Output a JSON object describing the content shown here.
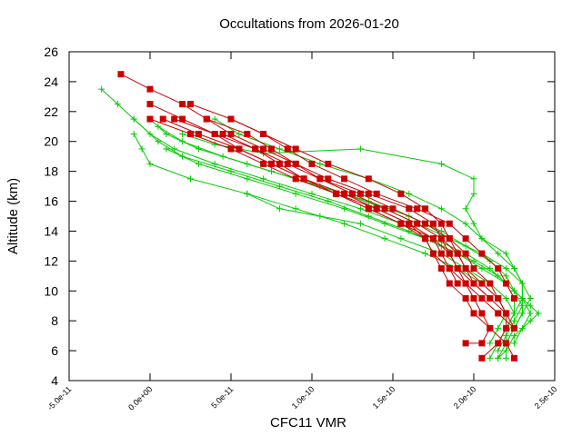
{
  "chart_data": {
    "type": "line",
    "title": "Occultations from 2026-01-20",
    "xlabel": "CFC11 VMR",
    "ylabel": "Altitude (km)",
    "xlim": [
      -5e-11,
      2.5e-10
    ],
    "ylim": [
      4,
      26
    ],
    "x_ticks": [
      "-5.0e-11",
      "0.0e+00",
      "5.0e-11",
      "1.0e-10",
      "1.5e-10",
      "2.0e-10",
      "2.5e-10"
    ],
    "y_ticks": [
      "4",
      "6",
      "8",
      "10",
      "12",
      "14",
      "16",
      "18",
      "20",
      "22",
      "24",
      "26"
    ],
    "grid": false,
    "legend": "none",
    "colors": {
      "green_series": "#00cc00",
      "red_series": "#cc0000"
    },
    "green_series": [
      {
        "points": [
          [
            -3e-11,
            23.5
          ],
          [
            -2e-11,
            22.5
          ],
          [
            -1e-11,
            21.5
          ],
          [
            5e-12,
            20.0
          ],
          [
            2e-11,
            19.0
          ],
          [
            5e-11,
            18.0
          ],
          [
            8e-11,
            17.0
          ],
          [
            1.1e-10,
            16.0
          ],
          [
            1.35e-10,
            15.0
          ],
          [
            1.6e-10,
            14.0
          ],
          [
            1.8e-10,
            13.0
          ],
          [
            2e-10,
            12.0
          ],
          [
            2.15e-10,
            11.0
          ],
          [
            2.25e-10,
            10.0
          ],
          [
            2.35e-10,
            9.0
          ],
          [
            2.4e-10,
            8.5
          ],
          [
            2.35e-10,
            8.0
          ],
          [
            2.25e-10,
            7.0
          ],
          [
            2.2e-10,
            6.0
          ],
          [
            2.15e-10,
            5.5
          ]
        ]
      },
      {
        "points": [
          [
            -1e-11,
            21.5
          ],
          [
            0.0,
            20.5
          ],
          [
            1.5e-11,
            19.5
          ],
          [
            4e-11,
            18.5
          ],
          [
            7e-11,
            17.5
          ],
          [
            1e-10,
            16.5
          ],
          [
            1.3e-10,
            15.5
          ],
          [
            1.55e-10,
            14.5
          ],
          [
            1.75e-10,
            13.5
          ],
          [
            1.95e-10,
            12.5
          ],
          [
            2.1e-10,
            11.5
          ],
          [
            2.2e-10,
            10.5
          ],
          [
            2.25e-10,
            9.5
          ],
          [
            2.25e-10,
            8.5
          ],
          [
            2.2e-10,
            7.5
          ],
          [
            2.15e-10,
            6.5
          ],
          [
            2.1e-10,
            5.5
          ]
        ]
      },
      {
        "points": [
          [
            -1e-11,
            20.5
          ],
          [
            -5e-12,
            19.5
          ],
          [
            0.0,
            18.5
          ],
          [
            2.5e-11,
            17.5
          ],
          [
            6e-11,
            16.5
          ],
          [
            9e-11,
            15.5
          ],
          [
            1.2e-10,
            14.5
          ],
          [
            1.45e-10,
            13.5
          ],
          [
            1.7e-10,
            12.5
          ],
          [
            1.9e-10,
            11.5
          ],
          [
            2.05e-10,
            10.5
          ],
          [
            2.15e-10,
            9.5
          ],
          [
            2.2e-10,
            8.5
          ],
          [
            2.15e-10,
            7.5
          ],
          [
            2.1e-10,
            6.5
          ]
        ]
      },
      {
        "points": [
          [
            0.0,
            21.5
          ],
          [
            1e-11,
            20.5
          ],
          [
            3e-11,
            19.5
          ],
          [
            6e-11,
            18.5
          ],
          [
            9e-11,
            17.5
          ],
          [
            1.2e-10,
            16.5
          ],
          [
            1.45e-10,
            15.5
          ],
          [
            1.65e-10,
            14.5
          ],
          [
            1.85e-10,
            13.5
          ],
          [
            2.05e-10,
            12.5
          ],
          [
            2.2e-10,
            11.5
          ],
          [
            2.3e-10,
            10.5
          ],
          [
            2.35e-10,
            9.5
          ],
          [
            2.3e-10,
            8.5
          ],
          [
            2.25e-10,
            7.5
          ],
          [
            2.2e-10,
            6.5
          ],
          [
            2.15e-10,
            5.5
          ]
        ]
      },
      {
        "points": [
          [
            5e-12,
            21.0
          ],
          [
            2e-11,
            20.0
          ],
          [
            4.5e-11,
            19.0
          ],
          [
            7.5e-11,
            18.0
          ],
          [
            1.05e-10,
            17.0
          ],
          [
            1.35e-10,
            16.0
          ],
          [
            1.6e-10,
            15.0
          ],
          [
            1.8e-10,
            14.0
          ],
          [
            1.95e-10,
            13.0
          ],
          [
            2.1e-10,
            12.0
          ],
          [
            2.2e-10,
            11.0
          ],
          [
            2.25e-10,
            10.0
          ],
          [
            2.3e-10,
            9.0
          ],
          [
            2.25e-10,
            8.0
          ],
          [
            2.2e-10,
            7.0
          ],
          [
            2.15e-10,
            6.0
          ]
        ]
      },
      {
        "points": [
          [
            2e-11,
            20.5
          ],
          [
            4e-11,
            19.8
          ],
          [
            7e-11,
            19.2
          ],
          [
            1.3e-10,
            19.5
          ],
          [
            1.8e-10,
            18.5
          ],
          [
            2e-10,
            17.5
          ],
          [
            2e-10,
            16.5
          ],
          [
            1.95e-10,
            15.5
          ],
          [
            2e-10,
            14.5
          ],
          [
            2.05e-10,
            13.5
          ],
          [
            2.2e-10,
            12.5
          ],
          [
            2.25e-10,
            11.5
          ],
          [
            2.3e-10,
            10.5
          ],
          [
            2.3e-10,
            9.5
          ],
          [
            2.25e-10,
            8.5
          ],
          [
            2.2e-10,
            7.5
          ],
          [
            2.2e-10,
            6.5
          ],
          [
            2.2e-10,
            5.5
          ]
        ]
      },
      {
        "points": [
          [
            4e-11,
            21.5
          ],
          [
            5.5e-11,
            20.5
          ],
          [
            8e-11,
            19.5
          ],
          [
            1.05e-10,
            18.5
          ],
          [
            1.35e-10,
            17.5
          ],
          [
            1.6e-10,
            16.5
          ],
          [
            1.8e-10,
            15.5
          ],
          [
            1.95e-10,
            14.5
          ],
          [
            2.05e-10,
            13.5
          ],
          [
            2.15e-10,
            12.5
          ],
          [
            2.25e-10,
            11.5
          ],
          [
            2.3e-10,
            10.5
          ],
          [
            2.3e-10,
            9.5
          ],
          [
            2.3e-10,
            8.5
          ],
          [
            2.25e-10,
            7.5
          ],
          [
            2.2e-10,
            6.5
          ]
        ]
      },
      {
        "points": [
          [
            1e-11,
            19.5
          ],
          [
            3e-11,
            18.5
          ],
          [
            6e-11,
            17.5
          ],
          [
            9e-11,
            16.5
          ],
          [
            1.2e-10,
            15.5
          ],
          [
            1.45e-10,
            14.5
          ],
          [
            1.7e-10,
            13.5
          ],
          [
            1.9e-10,
            12.5
          ],
          [
            2.05e-10,
            11.5
          ],
          [
            2.2e-10,
            10.5
          ],
          [
            2.3e-10,
            9.5
          ],
          [
            2.35e-10,
            8.5
          ],
          [
            2.3e-10,
            7.5
          ],
          [
            2.25e-10,
            6.5
          ]
        ]
      },
      {
        "points": [
          [
            6e-11,
            16.5
          ],
          [
            8e-11,
            15.5
          ],
          [
            1.05e-10,
            15.0
          ],
          [
            1.3e-10,
            14.5
          ],
          [
            1.55e-10,
            13.5
          ],
          [
            1.8e-10,
            12.5
          ],
          [
            1.95e-10,
            11.5
          ],
          [
            2.1e-10,
            10.5
          ],
          [
            2.2e-10,
            9.5
          ],
          [
            2.25e-10,
            8.5
          ]
        ]
      }
    ],
    "red_series": [
      {
        "points": [
          [
            -1.8e-11,
            24.5
          ],
          [
            0.0,
            23.5
          ],
          [
            2e-11,
            22.5
          ],
          [
            3.5e-11,
            21.5
          ],
          [
            5e-11,
            20.5
          ],
          [
            7e-11,
            19.5
          ],
          [
            9e-11,
            18.5
          ],
          [
            1.05e-10,
            17.5
          ],
          [
            1.3e-10,
            16.5
          ],
          [
            1.5e-10,
            15.5
          ],
          [
            1.7e-10,
            14.5
          ],
          [
            1.85e-10,
            13.5
          ],
          [
            1.95e-10,
            12.5
          ],
          [
            2e-10,
            11.5
          ],
          [
            2.1e-10,
            10.5
          ],
          [
            2.15e-10,
            9.5
          ],
          [
            2.2e-10,
            8.5
          ],
          [
            2.2e-10,
            7.5
          ],
          [
            2.15e-10,
            6.5
          ],
          [
            2.05e-10,
            5.5
          ]
        ]
      },
      {
        "points": [
          [
            0.0,
            22.5
          ],
          [
            2e-11,
            21.5
          ],
          [
            4e-11,
            20.5
          ],
          [
            5.5e-11,
            19.5
          ],
          [
            7.5e-11,
            18.5
          ],
          [
            9.5e-11,
            17.5
          ],
          [
            1.15e-10,
            16.5
          ],
          [
            1.35e-10,
            15.5
          ],
          [
            1.55e-10,
            14.5
          ],
          [
            1.75e-10,
            13.5
          ],
          [
            1.85e-10,
            12.5
          ],
          [
            1.9e-10,
            11.5
          ],
          [
            1.95e-10,
            10.5
          ],
          [
            2e-10,
            9.5
          ],
          [
            2.05e-10,
            8.5
          ],
          [
            2.1e-10,
            7.5
          ],
          [
            2.05e-10,
            6.5
          ],
          [
            1.95e-10,
            6.5
          ]
        ]
      },
      {
        "points": [
          [
            0.0,
            21.5
          ],
          [
            2.5e-11,
            20.5
          ],
          [
            5e-11,
            19.5
          ],
          [
            7e-11,
            18.5
          ],
          [
            9e-11,
            17.5
          ],
          [
            1.15e-10,
            16.5
          ],
          [
            1.35e-10,
            15.5
          ],
          [
            1.55e-10,
            14.5
          ],
          [
            1.7e-10,
            13.5
          ],
          [
            1.75e-10,
            12.5
          ],
          [
            1.8e-10,
            11.5
          ],
          [
            1.85e-10,
            10.5
          ],
          [
            1.95e-10,
            9.5
          ],
          [
            2e-10,
            8.5
          ],
          [
            2.1e-10,
            7.5
          ],
          [
            2.2e-10,
            6.5
          ],
          [
            2.25e-10,
            5.5
          ]
        ]
      },
      {
        "points": [
          [
            8e-12,
            21.5
          ],
          [
            3e-11,
            20.5
          ],
          [
            5.5e-11,
            19.5
          ],
          [
            7.5e-11,
            18.5
          ],
          [
            9.5e-11,
            17.5
          ],
          [
            1.2e-10,
            16.5
          ],
          [
            1.4e-10,
            15.5
          ],
          [
            1.6e-10,
            14.5
          ],
          [
            1.75e-10,
            13.5
          ],
          [
            1.8e-10,
            12.5
          ],
          [
            1.85e-10,
            11.5
          ],
          [
            1.95e-10,
            10.5
          ],
          [
            2.05e-10,
            9.5
          ],
          [
            2.15e-10,
            8.5
          ],
          [
            2.25e-10,
            7.5
          ]
        ]
      },
      {
        "points": [
          [
            1.5e-11,
            21.5
          ],
          [
            4e-11,
            20.5
          ],
          [
            6.5e-11,
            19.5
          ],
          [
            8.5e-11,
            18.5
          ],
          [
            1.05e-10,
            17.5
          ],
          [
            1.25e-10,
            16.5
          ],
          [
            1.45e-10,
            15.5
          ],
          [
            1.65e-10,
            14.5
          ],
          [
            1.8e-10,
            13.5
          ],
          [
            1.9e-10,
            12.5
          ],
          [
            1.95e-10,
            11.5
          ],
          [
            2e-10,
            10.5
          ],
          [
            2.1e-10,
            9.5
          ],
          [
            2.2e-10,
            8.5
          ],
          [
            2.25e-10,
            7.5
          ]
        ]
      },
      {
        "points": [
          [
            2.5e-11,
            22.5
          ],
          [
            5e-11,
            21.5
          ],
          [
            7e-11,
            20.5
          ],
          [
            9e-11,
            19.5
          ],
          [
            1.1e-10,
            18.5
          ],
          [
            1.35e-10,
            17.5
          ],
          [
            1.55e-10,
            16.5
          ],
          [
            1.7e-10,
            15.5
          ],
          [
            1.8e-10,
            14.5
          ],
          [
            1.85e-10,
            13.5
          ],
          [
            1.9e-10,
            12.5
          ],
          [
            1.95e-10,
            11.5
          ],
          [
            2.05e-10,
            10.5
          ],
          [
            2.15e-10,
            9.5
          ],
          [
            2.2e-10,
            8.5
          ]
        ]
      },
      {
        "points": [
          [
            3.5e-11,
            21.5
          ],
          [
            6e-11,
            20.5
          ],
          [
            7.5e-11,
            19.5
          ],
          [
            9e-11,
            18.5
          ],
          [
            1.1e-10,
            17.5
          ],
          [
            1.35e-10,
            16.5
          ],
          [
            1.6e-10,
            15.5
          ],
          [
            1.75e-10,
            14.5
          ],
          [
            1.8e-10,
            13.5
          ],
          [
            1.85e-10,
            12.5
          ],
          [
            1.9e-10,
            11.5
          ],
          [
            2e-10,
            10.5
          ],
          [
            2.1e-10,
            9.5
          ]
        ]
      },
      {
        "points": [
          [
            5e-11,
            21.5
          ],
          [
            7e-11,
            20.5
          ],
          [
            8.5e-11,
            19.5
          ],
          [
            1e-10,
            18.5
          ],
          [
            1.2e-10,
            17.5
          ],
          [
            1.4e-10,
            16.5
          ],
          [
            1.65e-10,
            15.5
          ],
          [
            1.85e-10,
            14.5
          ],
          [
            1.95e-10,
            13.5
          ],
          [
            2.05e-10,
            12.5
          ],
          [
            2.15e-10,
            11.5
          ],
          [
            2.2e-10,
            10.5
          ],
          [
            2.25e-10,
            9.5
          ]
        ]
      },
      {
        "points": [
          [
            4.5e-11,
            20.5
          ],
          [
            6.5e-11,
            19.5
          ],
          [
            8e-11,
            18.5
          ],
          [
            9.5e-11,
            17.5
          ],
          [
            1.15e-10,
            16.5
          ],
          [
            1.4e-10,
            15.5
          ],
          [
            1.6e-10,
            14.5
          ],
          [
            1.7e-10,
            13.5
          ],
          [
            1.75e-10,
            12.5
          ],
          [
            1.85e-10,
            11.5
          ],
          [
            1.9e-10,
            10.5
          ]
        ]
      }
    ]
  }
}
